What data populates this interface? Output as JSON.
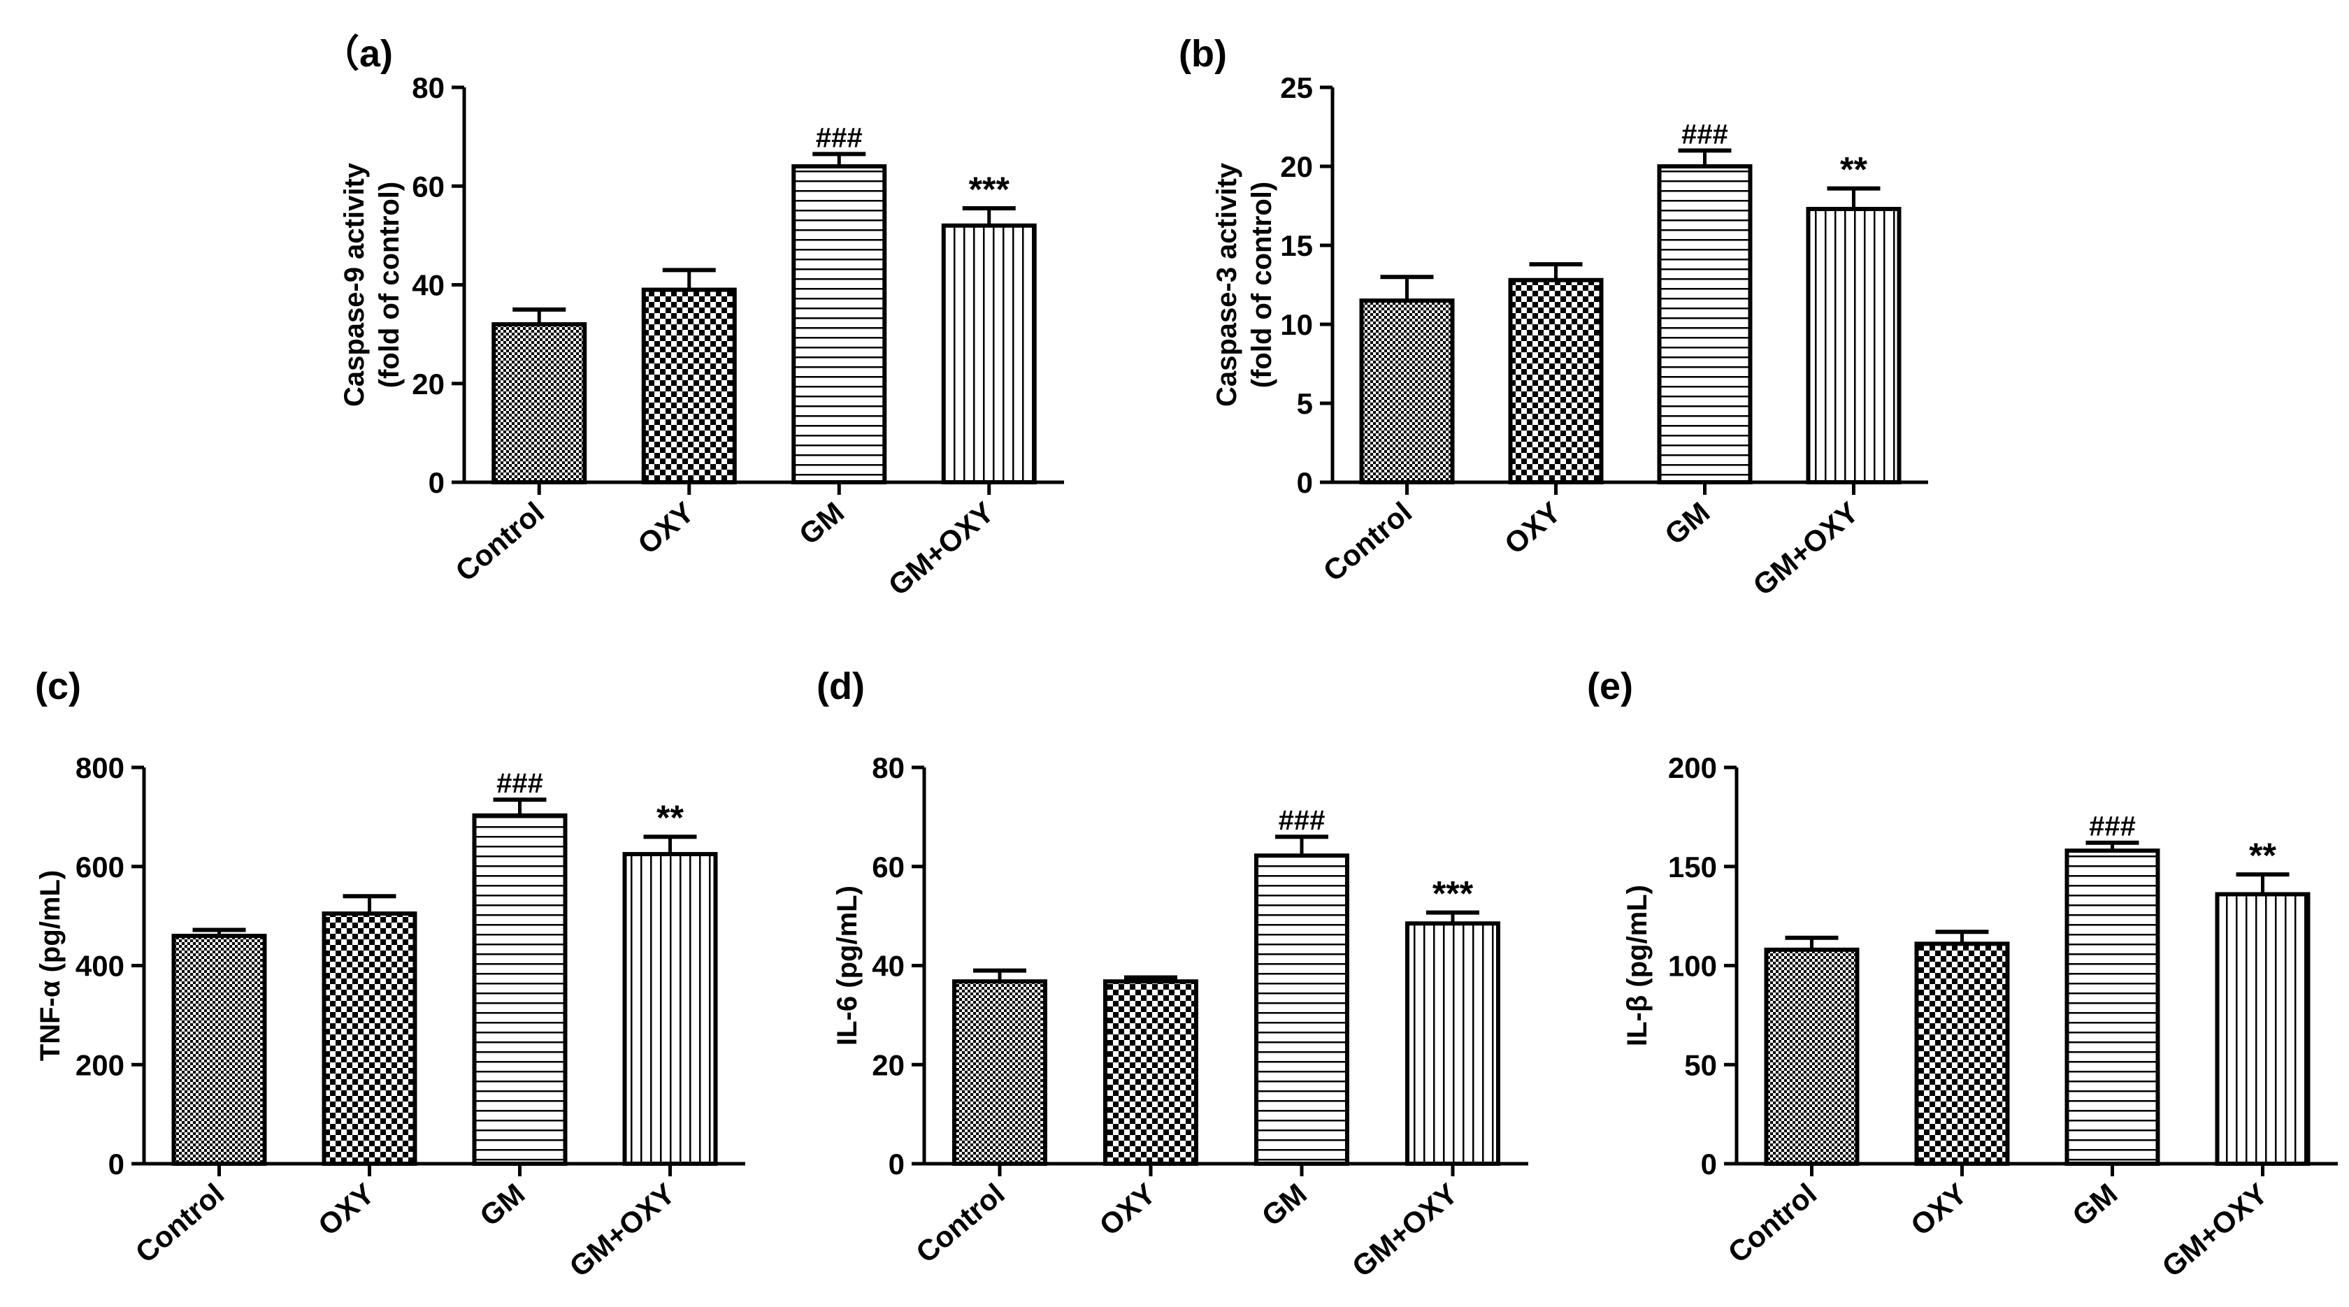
{
  "figure": {
    "background": "#ffffff",
    "bar_stroke": "#000000",
    "bar_fill": "#ffffff"
  },
  "chart_data": [
    {
      "id": "a",
      "panel_label": "（a)",
      "type": "bar",
      "categories": [
        "Control",
        "OXY",
        "GM",
        "GM+OXY"
      ],
      "values": [
        32,
        39,
        64,
        52
      ],
      "errors": [
        3,
        4,
        2.5,
        3.5
      ],
      "patterns": [
        "checker-fine",
        "checker-coarse",
        "horizontal",
        "vertical"
      ],
      "annotations": [
        "",
        "",
        "###",
        "***"
      ],
      "ylabel": [
        "Caspase-9 activity",
        "(fold of control)"
      ],
      "ylim": [
        0,
        80
      ],
      "yticks": [
        0,
        20,
        40,
        60,
        80
      ],
      "xlabel": "",
      "grid": false
    },
    {
      "id": "b",
      "panel_label": "(b)",
      "type": "bar",
      "categories": [
        "Control",
        "OXY",
        "GM",
        "GM+OXY"
      ],
      "values": [
        11.5,
        12.8,
        20,
        17.3
      ],
      "errors": [
        1.5,
        1,
        1,
        1.3
      ],
      "patterns": [
        "checker-fine",
        "checker-coarse",
        "horizontal",
        "vertical"
      ],
      "annotations": [
        "",
        "",
        "###",
        "**"
      ],
      "ylabel": [
        "Caspase-3 activity",
        "(fold of control)"
      ],
      "ylim": [
        0,
        25
      ],
      "yticks": [
        0,
        5,
        10,
        15,
        20,
        25
      ],
      "xlabel": "",
      "grid": false
    },
    {
      "id": "c",
      "panel_label": "(c)",
      "type": "bar",
      "categories": [
        "Control",
        "OXY",
        "GM",
        "GM+OXY"
      ],
      "values": [
        460,
        505,
        703,
        625
      ],
      "errors": [
        12,
        35,
        32,
        35
      ],
      "patterns": [
        "checker-fine",
        "checker-coarse",
        "horizontal",
        "vertical"
      ],
      "annotations": [
        "",
        "",
        "###",
        "**"
      ],
      "ylabel": [
        "TNF-α (pg/mL)"
      ],
      "ylim": [
        0,
        800
      ],
      "yticks": [
        0,
        200,
        400,
        600,
        800
      ],
      "xlabel": "",
      "grid": false
    },
    {
      "id": "d",
      "panel_label": "(d)",
      "type": "bar",
      "categories": [
        "Control",
        "OXY",
        "GM",
        "GM+OXY"
      ],
      "values": [
        36.8,
        36.8,
        62.2,
        48.5
      ],
      "errors": [
        2.2,
        0.8,
        3.8,
        2.2
      ],
      "patterns": [
        "checker-fine",
        "checker-coarse",
        "horizontal",
        "vertical"
      ],
      "annotations": [
        "",
        "",
        "###",
        "***"
      ],
      "ylabel": [
        "IL-6 (pg/mL)"
      ],
      "ylim": [
        0,
        80
      ],
      "yticks": [
        0,
        20,
        40,
        60,
        80
      ],
      "xlabel": "",
      "grid": false
    },
    {
      "id": "e",
      "panel_label": "(e)",
      "type": "bar",
      "categories": [
        "Control",
        "OXY",
        "GM",
        "GM+OXY"
      ],
      "values": [
        108,
        111,
        158,
        136
      ],
      "errors": [
        6,
        6,
        4,
        10
      ],
      "patterns": [
        "checker-fine",
        "checker-coarse",
        "horizontal",
        "vertical"
      ],
      "annotations": [
        "",
        "",
        "###",
        "**"
      ],
      "ylabel": [
        "IL-β (pg/mL)"
      ],
      "ylim": [
        0,
        200
      ],
      "yticks": [
        0,
        50,
        100,
        150,
        200
      ],
      "xlabel": "",
      "grid": false
    }
  ]
}
